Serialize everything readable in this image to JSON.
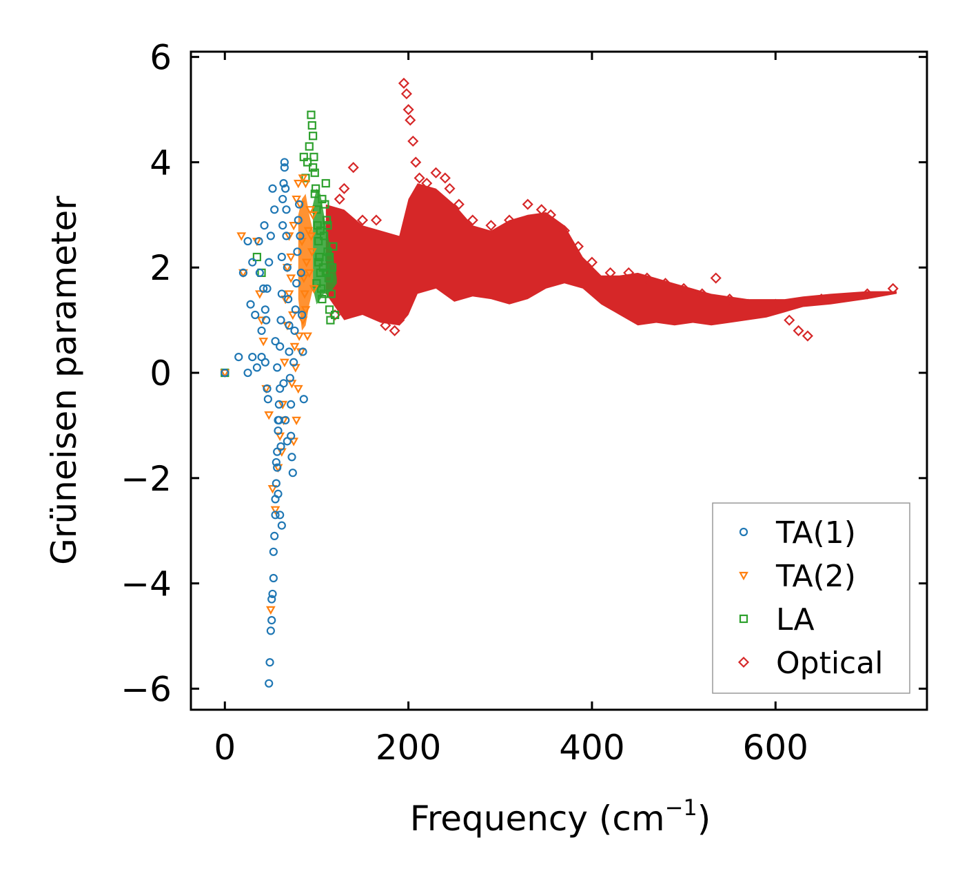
{
  "chart_data": {
    "type": "scatter",
    "title": "",
    "xlabel": "Frequency (cm",
    "xlabel_sup": "−1",
    "xlabel_end": ")",
    "ylabel": "Grüneisen parameter",
    "xlim": [
      -37,
      765
    ],
    "ylim": [
      -6.4,
      6.1
    ],
    "xticks": [
      0,
      200,
      400,
      600
    ],
    "xtick_labels": [
      "0",
      "200",
      "400",
      "600"
    ],
    "yticks": [
      -6,
      -4,
      -2,
      0,
      2,
      4,
      6
    ],
    "ytick_labels": [
      "−6",
      "−4",
      "−2",
      "0",
      "2",
      "4",
      "6"
    ],
    "legend_position": "lower-right",
    "series": [
      {
        "name": "TA(1)",
        "marker": "circle",
        "color": "#1f77b4",
        "points": [
          [
            0,
            0
          ],
          [
            15,
            0.3
          ],
          [
            20,
            1.9
          ],
          [
            25,
            2.5
          ],
          [
            25,
            0
          ],
          [
            28,
            1.3
          ],
          [
            30,
            2.1
          ],
          [
            30,
            0.3
          ],
          [
            33,
            1.1
          ],
          [
            35,
            0.1
          ],
          [
            37,
            2.5
          ],
          [
            38,
            1.9
          ],
          [
            40,
            0.8
          ],
          [
            40,
            0.3
          ],
          [
            42,
            1.6
          ],
          [
            43,
            2.8
          ],
          [
            44,
            0.2
          ],
          [
            45,
            1.0
          ],
          [
            46,
            -0.3
          ],
          [
            47,
            -0.5
          ],
          [
            48,
            -5.9
          ],
          [
            49,
            -5.5
          ],
          [
            50,
            -4.9
          ],
          [
            51,
            -4.7
          ],
          [
            51,
            -4.3
          ],
          [
            52,
            -4.2
          ],
          [
            53,
            -3.9
          ],
          [
            53,
            -3.4
          ],
          [
            54,
            -3.1
          ],
          [
            55,
            -2.7
          ],
          [
            55,
            -2.4
          ],
          [
            56,
            -2.1
          ],
          [
            57,
            -1.8
          ],
          [
            57,
            -1.5
          ],
          [
            58,
            -1.1
          ],
          [
            58,
            -0.9
          ],
          [
            59,
            -0.6
          ],
          [
            60,
            -0.3
          ],
          [
            60,
            0.5
          ],
          [
            61,
            1.0
          ],
          [
            62,
            1.5
          ],
          [
            62,
            2.2
          ],
          [
            63,
            2.8
          ],
          [
            63,
            3.3
          ],
          [
            64,
            3.6
          ],
          [
            65,
            3.9
          ],
          [
            65,
            4.0
          ],
          [
            66,
            3.5
          ],
          [
            67,
            3.1
          ],
          [
            67,
            2.6
          ],
          [
            68,
            2.0
          ],
          [
            69,
            1.4
          ],
          [
            70,
            0.9
          ],
          [
            70,
            0.4
          ],
          [
            71,
            -0.1
          ],
          [
            72,
            -0.6
          ],
          [
            72,
            -1.2
          ],
          [
            73,
            -1.6
          ],
          [
            74,
            -1.9
          ],
          [
            60,
            -2.7
          ],
          [
            62,
            -2.9
          ],
          [
            58,
            -2.3
          ],
          [
            56,
            -1.7
          ],
          [
            68,
            -1.3
          ],
          [
            66,
            -0.9
          ],
          [
            64,
            -0.2
          ],
          [
            75,
            0.2
          ],
          [
            76,
            0.8
          ],
          [
            77,
            1.2
          ],
          [
            78,
            1.7
          ],
          [
            79,
            2.3
          ],
          [
            80,
            2.9
          ],
          [
            81,
            3.2
          ],
          [
            82,
            2.6
          ],
          [
            83,
            1.9
          ],
          [
            84,
            1.1
          ],
          [
            85,
            0.4
          ],
          [
            86,
            -0.5
          ],
          [
            52,
            3.5
          ],
          [
            54,
            3.1
          ],
          [
            50,
            2.6
          ],
          [
            48,
            2.1
          ],
          [
            46,
            1.6
          ],
          [
            44,
            1.2
          ],
          [
            55,
            0.6
          ],
          [
            57,
            0.1
          ],
          [
            59,
            -0.9
          ],
          [
            61,
            -1.4
          ]
        ]
      },
      {
        "name": "TA(2)",
        "marker": "triangle-down",
        "color": "#ff7f0e",
        "points": [
          [
            0,
            0
          ],
          [
            18,
            2.6
          ],
          [
            20,
            1.9
          ],
          [
            35,
            2.5
          ],
          [
            38,
            1.5
          ],
          [
            40,
            1.0
          ],
          [
            42,
            0.6
          ],
          [
            45,
            -0.3
          ],
          [
            48,
            -0.8
          ],
          [
            50,
            -4.5
          ],
          [
            52,
            -2.2
          ],
          [
            55,
            -2.6
          ],
          [
            58,
            -1.8
          ],
          [
            60,
            -1.2
          ],
          [
            63,
            -0.6
          ],
          [
            65,
            0.2
          ],
          [
            68,
            0.9
          ],
          [
            70,
            1.5
          ],
          [
            72,
            2.2
          ],
          [
            75,
            2.8
          ],
          [
            78,
            3.3
          ],
          [
            80,
            3.6
          ],
          [
            82,
            3.2
          ],
          [
            84,
            2.5
          ],
          [
            86,
            1.8
          ],
          [
            88,
            1.2
          ],
          [
            90,
            0.7
          ],
          [
            92,
            1.9
          ],
          [
            94,
            2.6
          ],
          [
            96,
            3.0
          ],
          [
            75,
            -1.3
          ],
          [
            78,
            -0.9
          ],
          [
            80,
            -0.3
          ],
          [
            83,
            0.4
          ],
          [
            85,
            1.0
          ],
          [
            87,
            1.5
          ],
          [
            89,
            2.1
          ],
          [
            91,
            2.7
          ],
          [
            93,
            3.1
          ],
          [
            95,
            2.3
          ],
          [
            97,
            1.6
          ],
          [
            85,
            3.7
          ],
          [
            88,
            3.6
          ],
          [
            70,
            2.6
          ],
          [
            72,
            1.8
          ],
          [
            74,
            1.1
          ],
          [
            76,
            0.5
          ],
          [
            66,
            1.4
          ],
          [
            68,
            2.0
          ],
          [
            73,
            -0.2
          ],
          [
            77,
            0.1
          ],
          [
            81,
            0.7
          ],
          [
            62,
            -1.5
          ],
          [
            64,
            -0.9
          ]
        ]
      },
      {
        "name": "LA",
        "marker": "square",
        "color": "#2ca02c",
        "points": [
          [
            0,
            0
          ],
          [
            35,
            2.2
          ],
          [
            40,
            1.9
          ],
          [
            90,
            4.0
          ],
          [
            92,
            4.3
          ],
          [
            94,
            4.9
          ],
          [
            95,
            4.7
          ],
          [
            96,
            4.5
          ],
          [
            97,
            4.1
          ],
          [
            98,
            3.8
          ],
          [
            99,
            3.5
          ],
          [
            100,
            3.1
          ],
          [
            101,
            2.8
          ],
          [
            102,
            2.5
          ],
          [
            103,
            2.2
          ],
          [
            104,
            1.9
          ],
          [
            105,
            1.6
          ],
          [
            106,
            1.4
          ],
          [
            107,
            2.0
          ],
          [
            108,
            2.6
          ],
          [
            109,
            3.2
          ],
          [
            110,
            3.6
          ],
          [
            111,
            2.9
          ],
          [
            112,
            2.3
          ],
          [
            113,
            1.8
          ],
          [
            114,
            1.2
          ],
          [
            115,
            1.0
          ],
          [
            116,
            1.5
          ],
          [
            117,
            2.0
          ],
          [
            118,
            2.4
          ],
          [
            120,
            1.1
          ],
          [
            100,
            1.7
          ],
          [
            102,
            2.1
          ],
          [
            104,
            2.7
          ],
          [
            106,
            3.3
          ],
          [
            108,
            1.5
          ],
          [
            110,
            1.9
          ],
          [
            112,
            2.8
          ],
          [
            114,
            2.2
          ],
          [
            96,
            3.9
          ],
          [
            98,
            3.4
          ],
          [
            86,
            4.1
          ],
          [
            88,
            3.7
          ]
        ]
      },
      {
        "name": "Optical",
        "marker": "diamond",
        "color": "#d62728",
        "points": [
          [
            120,
            1.1
          ],
          [
            125,
            3.3
          ],
          [
            130,
            3.5
          ],
          [
            140,
            3.9
          ],
          [
            150,
            2.9
          ],
          [
            165,
            2.9
          ],
          [
            175,
            0.9
          ],
          [
            185,
            0.8
          ],
          [
            190,
            1.0
          ],
          [
            195,
            5.5
          ],
          [
            198,
            5.3
          ],
          [
            200,
            5.0
          ],
          [
            202,
            4.8
          ],
          [
            205,
            4.4
          ],
          [
            208,
            4.0
          ],
          [
            212,
            3.7
          ],
          [
            220,
            3.6
          ],
          [
            230,
            3.8
          ],
          [
            240,
            3.7
          ],
          [
            245,
            3.5
          ],
          [
            255,
            3.2
          ],
          [
            270,
            2.9
          ],
          [
            290,
            2.8
          ],
          [
            310,
            2.9
          ],
          [
            330,
            3.2
          ],
          [
            345,
            3.1
          ],
          [
            355,
            3.0
          ],
          [
            370,
            2.7
          ],
          [
            385,
            2.4
          ],
          [
            400,
            2.1
          ],
          [
            420,
            1.9
          ],
          [
            440,
            1.9
          ],
          [
            460,
            1.8
          ],
          [
            480,
            1.7
          ],
          [
            500,
            1.6
          ],
          [
            520,
            1.5
          ],
          [
            535,
            1.8
          ],
          [
            550,
            1.4
          ],
          [
            570,
            1.3
          ],
          [
            600,
            1.3
          ],
          [
            615,
            1.0
          ],
          [
            625,
            0.8
          ],
          [
            635,
            0.7
          ],
          [
            650,
            1.4
          ],
          [
            700,
            1.5
          ],
          [
            728,
            1.6
          ]
        ]
      }
    ]
  }
}
